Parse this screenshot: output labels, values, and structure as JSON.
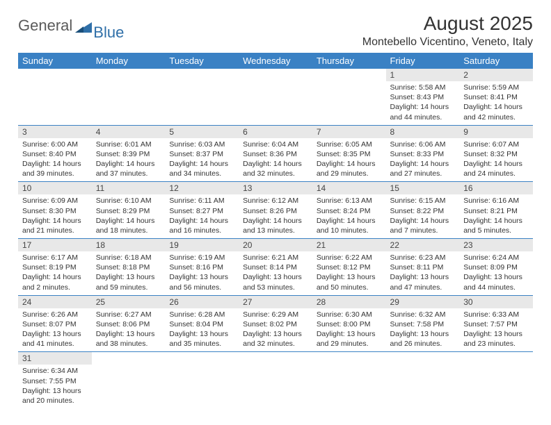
{
  "header": {
    "logo_general": "General",
    "logo_blue": "Blue",
    "month_title": "August 2025",
    "location": "Montebello Vicentino, Veneto, Italy"
  },
  "colors": {
    "header_bg": "#3a81c4",
    "header_text": "#ffffff",
    "daynum_bg": "#e8e8e8",
    "row_border": "#3a81c4",
    "logo_gray": "#5a5a5a",
    "logo_blue": "#2f6fa8",
    "page_bg": "#ffffff",
    "text": "#333333"
  },
  "calendar": {
    "day_headers": [
      "Sunday",
      "Monday",
      "Tuesday",
      "Wednesday",
      "Thursday",
      "Friday",
      "Saturday"
    ],
    "weeks": [
      [
        null,
        null,
        null,
        null,
        null,
        {
          "n": "1",
          "sr": "5:58 AM",
          "ss": "8:43 PM",
          "dl": "14 hours and 44 minutes."
        },
        {
          "n": "2",
          "sr": "5:59 AM",
          "ss": "8:41 PM",
          "dl": "14 hours and 42 minutes."
        }
      ],
      [
        {
          "n": "3",
          "sr": "6:00 AM",
          "ss": "8:40 PM",
          "dl": "14 hours and 39 minutes."
        },
        {
          "n": "4",
          "sr": "6:01 AM",
          "ss": "8:39 PM",
          "dl": "14 hours and 37 minutes."
        },
        {
          "n": "5",
          "sr": "6:03 AM",
          "ss": "8:37 PM",
          "dl": "14 hours and 34 minutes."
        },
        {
          "n": "6",
          "sr": "6:04 AM",
          "ss": "8:36 PM",
          "dl": "14 hours and 32 minutes."
        },
        {
          "n": "7",
          "sr": "6:05 AM",
          "ss": "8:35 PM",
          "dl": "14 hours and 29 minutes."
        },
        {
          "n": "8",
          "sr": "6:06 AM",
          "ss": "8:33 PM",
          "dl": "14 hours and 27 minutes."
        },
        {
          "n": "9",
          "sr": "6:07 AM",
          "ss": "8:32 PM",
          "dl": "14 hours and 24 minutes."
        }
      ],
      [
        {
          "n": "10",
          "sr": "6:09 AM",
          "ss": "8:30 PM",
          "dl": "14 hours and 21 minutes."
        },
        {
          "n": "11",
          "sr": "6:10 AM",
          "ss": "8:29 PM",
          "dl": "14 hours and 18 minutes."
        },
        {
          "n": "12",
          "sr": "6:11 AM",
          "ss": "8:27 PM",
          "dl": "14 hours and 16 minutes."
        },
        {
          "n": "13",
          "sr": "6:12 AM",
          "ss": "8:26 PM",
          "dl": "14 hours and 13 minutes."
        },
        {
          "n": "14",
          "sr": "6:13 AM",
          "ss": "8:24 PM",
          "dl": "14 hours and 10 minutes."
        },
        {
          "n": "15",
          "sr": "6:15 AM",
          "ss": "8:22 PM",
          "dl": "14 hours and 7 minutes."
        },
        {
          "n": "16",
          "sr": "6:16 AM",
          "ss": "8:21 PM",
          "dl": "14 hours and 5 minutes."
        }
      ],
      [
        {
          "n": "17",
          "sr": "6:17 AM",
          "ss": "8:19 PM",
          "dl": "14 hours and 2 minutes."
        },
        {
          "n": "18",
          "sr": "6:18 AM",
          "ss": "8:18 PM",
          "dl": "13 hours and 59 minutes."
        },
        {
          "n": "19",
          "sr": "6:19 AM",
          "ss": "8:16 PM",
          "dl": "13 hours and 56 minutes."
        },
        {
          "n": "20",
          "sr": "6:21 AM",
          "ss": "8:14 PM",
          "dl": "13 hours and 53 minutes."
        },
        {
          "n": "21",
          "sr": "6:22 AM",
          "ss": "8:12 PM",
          "dl": "13 hours and 50 minutes."
        },
        {
          "n": "22",
          "sr": "6:23 AM",
          "ss": "8:11 PM",
          "dl": "13 hours and 47 minutes."
        },
        {
          "n": "23",
          "sr": "6:24 AM",
          "ss": "8:09 PM",
          "dl": "13 hours and 44 minutes."
        }
      ],
      [
        {
          "n": "24",
          "sr": "6:26 AM",
          "ss": "8:07 PM",
          "dl": "13 hours and 41 minutes."
        },
        {
          "n": "25",
          "sr": "6:27 AM",
          "ss": "8:06 PM",
          "dl": "13 hours and 38 minutes."
        },
        {
          "n": "26",
          "sr": "6:28 AM",
          "ss": "8:04 PM",
          "dl": "13 hours and 35 minutes."
        },
        {
          "n": "27",
          "sr": "6:29 AM",
          "ss": "8:02 PM",
          "dl": "13 hours and 32 minutes."
        },
        {
          "n": "28",
          "sr": "6:30 AM",
          "ss": "8:00 PM",
          "dl": "13 hours and 29 minutes."
        },
        {
          "n": "29",
          "sr": "6:32 AM",
          "ss": "7:58 PM",
          "dl": "13 hours and 26 minutes."
        },
        {
          "n": "30",
          "sr": "6:33 AM",
          "ss": "7:57 PM",
          "dl": "13 hours and 23 minutes."
        }
      ],
      [
        {
          "n": "31",
          "sr": "6:34 AM",
          "ss": "7:55 PM",
          "dl": "13 hours and 20 minutes."
        },
        null,
        null,
        null,
        null,
        null,
        null
      ]
    ],
    "labels": {
      "sunrise_prefix": "Sunrise: ",
      "sunset_prefix": "Sunset: ",
      "daylight_prefix": "Daylight: "
    }
  }
}
